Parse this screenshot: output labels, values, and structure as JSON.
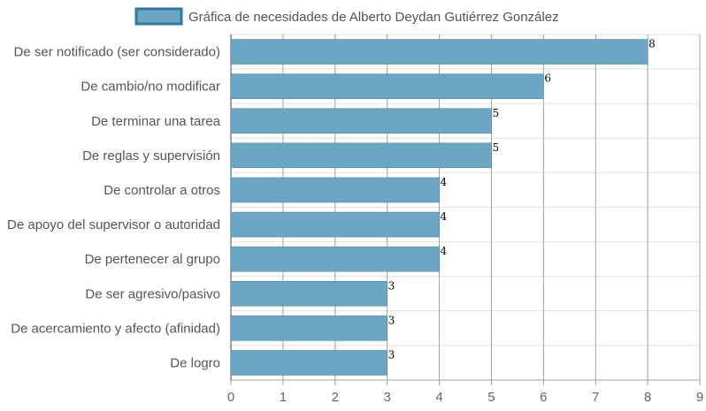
{
  "chart_data": {
    "type": "bar",
    "orientation": "horizontal",
    "categories": [
      "De ser notificado (ser considerado)",
      "De cambio/no modificar",
      "De terminar una tarea",
      "De reglas y supervisión",
      "De controlar a otros",
      "De apoyo del supervisor o autoridad",
      "De pertenecer al grupo",
      "De ser agresivo/pasivo",
      "De acercamiento y afecto (afinidad)",
      "De logro"
    ],
    "series": [
      {
        "name": "Gráfica de necesidades de Alberto Deydan Gutiérrez González",
        "values": [
          8,
          6,
          5,
          5,
          4,
          4,
          4,
          3,
          3,
          3
        ],
        "color": "#6ca6c4",
        "border_color": "#3e7fa3"
      }
    ],
    "xlim": [
      0,
      9
    ],
    "x_ticks": [
      "0",
      "1",
      "2",
      "3",
      "4",
      "5",
      "6",
      "7",
      "8",
      "9"
    ],
    "legend_position": "top",
    "grid": true,
    "data_labels": true
  }
}
